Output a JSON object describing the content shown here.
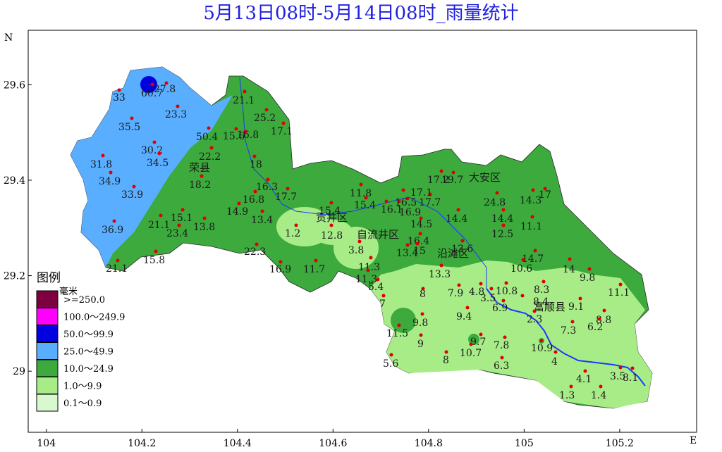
{
  "title": "5月13日08时-5月14日08时_雨量统计",
  "axes": {
    "x_label": "E",
    "y_label": "N",
    "xlim": [
      103.962,
      105.361
    ],
    "xticks": [
      104,
      104.2,
      104.4,
      104.6,
      104.8,
      105,
      105.2
    ],
    "ylim": [
      28.872,
      29.714
    ],
    "yticks": [
      29,
      29.2,
      29.4,
      29.6
    ]
  },
  "districts": [
    "荣县",
    "贡井区",
    "自流井区",
    "沿滩区",
    "大安区",
    "富顺县"
  ],
  "legend": {
    "title": "图例",
    "unit": "毫米",
    "items": [
      {
        "label": ">=250.0",
        "color": "#7f0040"
      },
      {
        "label": "100.0～249.9",
        "color": "#ff00ff"
      },
      {
        "label": "50.0～99.9",
        "color": "#0000e0"
      },
      {
        "label": "25.0～49.9",
        "color": "#5aaeff"
      },
      {
        "label": "10.0～24.9",
        "color": "#3caa3c"
      },
      {
        "label": "1.0～9.9",
        "color": "#a8ec88"
      },
      {
        "label": "0.1～0.9",
        "color": "#d8f8d0"
      }
    ]
  },
  "stations": [
    33,
    60.7,
    27.8,
    23.3,
    35.5,
    50.4,
    15.6,
    16.8,
    21.1,
    25.2,
    17.1,
    30.2,
    34.5,
    22.2,
    31.8,
    34.9,
    18,
    18.2,
    33.9,
    16.3,
    17.7,
    16.8,
    14.9,
    13.4,
    15.1,
    21.1,
    23.4,
    13.8,
    36.9,
    22.3,
    16.9,
    11.7,
    15.8,
    21.1,
    1.2,
    15.4,
    12.8,
    3.8,
    11.8,
    15.4,
    16.1,
    16.9,
    16.5,
    17.7,
    17.1,
    14.5,
    16.4,
    13.4,
    15,
    11.3,
    11.3,
    5.4,
    7,
    17.2,
    19.7,
    14.4,
    13.6,
    13.3,
    24.8,
    14.3,
    17,
    14.4,
    11.1,
    12.5,
    14.7,
    10.6,
    14,
    9.8,
    11.1,
    8.3,
    8.4,
    8,
    7.9,
    4.8,
    3.5,
    10.8,
    6.9,
    9.1,
    9.4,
    9.8,
    2.3,
    8.8,
    6.2,
    7.3,
    11.5,
    9,
    9.7,
    7.8,
    10.9,
    10.7,
    8,
    4,
    6.3,
    5.6,
    4.1,
    3.5,
    8.1,
    1.3,
    1.4
  ]
}
